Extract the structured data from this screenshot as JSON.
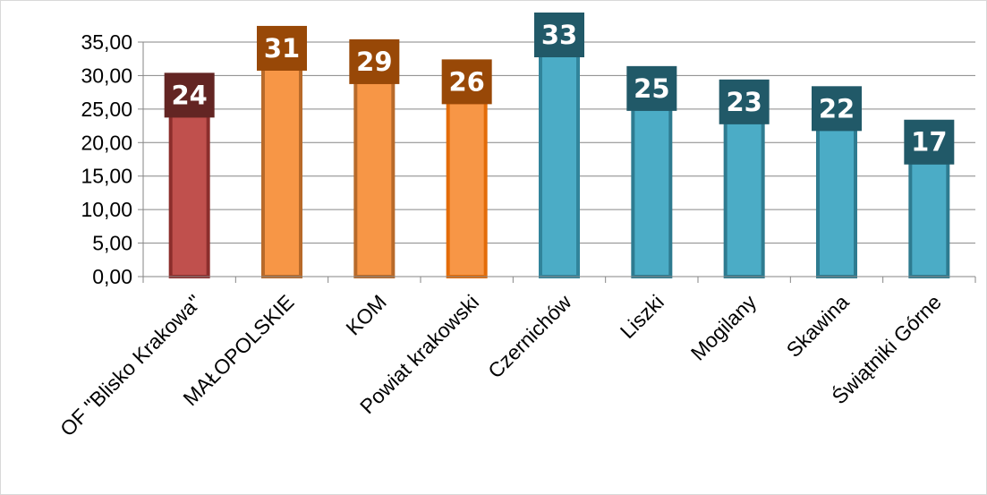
{
  "chart_data": {
    "type": "bar",
    "categories": [
      "OF \"Blisko Krakowa\"",
      "MAŁOPOLSKIE",
      "KOM",
      "Powiat krakowski",
      "Czernichów",
      "Liszki",
      "Mogilany",
      "Skawina",
      "Świątniki Górne"
    ],
    "values": [
      24,
      31,
      29,
      26,
      33,
      25,
      23,
      22,
      17
    ],
    "data_labels": [
      "24",
      "31",
      "29",
      "26",
      "33",
      "25",
      "23",
      "22",
      "17"
    ],
    "title": "",
    "xlabel": "",
    "ylabel": "",
    "ylim": [
      0,
      35
    ],
    "yticks": [
      0,
      5,
      10,
      15,
      20,
      25,
      30,
      35
    ],
    "ytick_labels": [
      "0,00",
      "5,00",
      "10,00",
      "15,00",
      "20,00",
      "25,00",
      "30,00",
      "35,00"
    ],
    "grid": true,
    "legend": "none",
    "bar_colors": [
      {
        "fill": "#c0504d",
        "stroke": "#8c2e2c",
        "label_bg": "#632523"
      },
      {
        "fill": "#f79646",
        "stroke": "#b86a2a",
        "label_bg": "#984807"
      },
      {
        "fill": "#f79646",
        "stroke": "#b86a2a",
        "label_bg": "#984807"
      },
      {
        "fill": "#f79646",
        "stroke": "#e36c09",
        "label_bg": "#984807"
      },
      {
        "fill": "#4bacc6",
        "stroke": "#31849b",
        "label_bg": "#215968"
      },
      {
        "fill": "#4bacc6",
        "stroke": "#2e7b90",
        "label_bg": "#215968"
      },
      {
        "fill": "#4bacc6",
        "stroke": "#2e7b90",
        "label_bg": "#215968"
      },
      {
        "fill": "#4bacc6",
        "stroke": "#2e7b90",
        "label_bg": "#215968"
      },
      {
        "fill": "#4bacc6",
        "stroke": "#2e7b90",
        "label_bg": "#215968"
      }
    ],
    "gridline_color": "#868686",
    "axis_color": "#868686"
  }
}
